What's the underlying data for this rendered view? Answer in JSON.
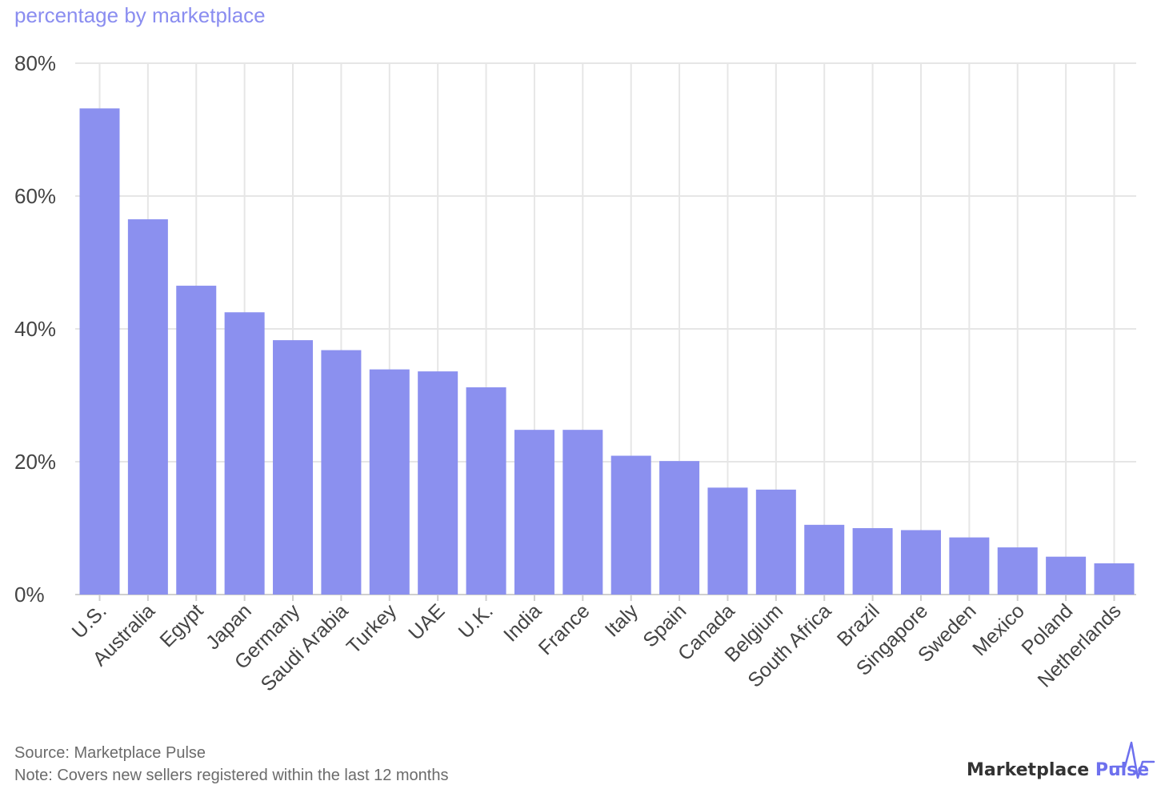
{
  "subtitle": "percentage by marketplace",
  "footer": {
    "source": "Source: Marketplace Pulse",
    "note": "Note: Covers new sellers registered within the last 12 months"
  },
  "brand": {
    "word1": "Marketplace",
    "word2": "Pulse",
    "logo_icon": "pulse-line-icon",
    "accent_color": "#6d70ee"
  },
  "chart_data": {
    "type": "bar",
    "title": "",
    "subtitle": "percentage by marketplace",
    "xlabel": "",
    "ylabel": "",
    "ylim": [
      0,
      80
    ],
    "yticks": [
      0,
      20,
      40,
      60,
      80
    ],
    "ytick_labels": [
      "0%",
      "20%",
      "40%",
      "60%",
      "80%"
    ],
    "grid": true,
    "bar_color": "#8b90ef",
    "categories": [
      "U.S.",
      "Australia",
      "Egypt",
      "Japan",
      "Germany",
      "Saudi Arabia",
      "Turkey",
      "UAE",
      "U.K.",
      "India",
      "France",
      "Italy",
      "Spain",
      "Canada",
      "Belgium",
      "South Africa",
      "Brazil",
      "Singapore",
      "Sweden",
      "Mexico",
      "Poland",
      "Netherlands"
    ],
    "values": [
      73.2,
      56.5,
      46.5,
      42.5,
      38.3,
      36.8,
      33.9,
      33.6,
      31.2,
      24.8,
      24.8,
      20.9,
      20.1,
      16.1,
      15.8,
      10.5,
      10.0,
      9.7,
      8.6,
      7.1,
      5.7,
      4.7
    ]
  }
}
